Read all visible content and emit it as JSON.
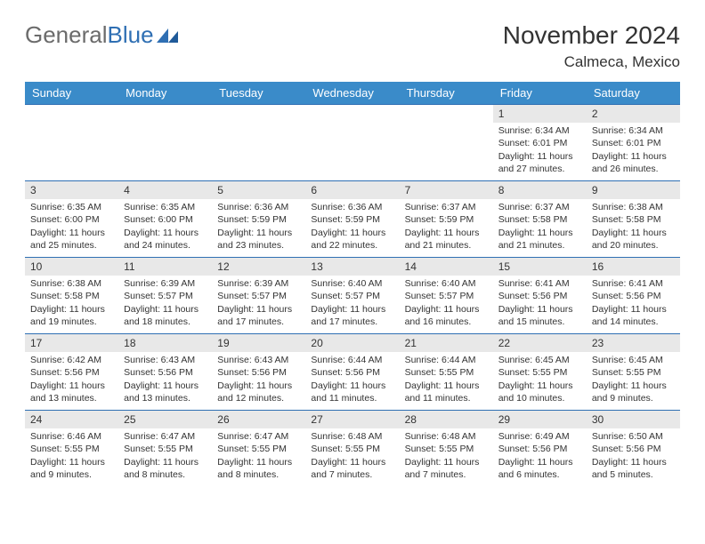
{
  "logo": {
    "text1": "General",
    "text2": "Blue"
  },
  "title": "November 2024",
  "location": "Calmeca, Mexico",
  "colors": {
    "header_bg": "#3a8bc9",
    "header_text": "#ffffff",
    "border": "#2f6fb3",
    "daynum_bg": "#e8e8e8",
    "text": "#333333",
    "logo_gray": "#6b6b6b",
    "logo_blue": "#2f6fb3"
  },
  "weekdays": [
    "Sunday",
    "Monday",
    "Tuesday",
    "Wednesday",
    "Thursday",
    "Friday",
    "Saturday"
  ],
  "weeks": [
    [
      null,
      null,
      null,
      null,
      null,
      {
        "d": "1",
        "sr": "Sunrise: 6:34 AM",
        "ss": "Sunset: 6:01 PM",
        "dl": "Daylight: 11 hours and 27 minutes."
      },
      {
        "d": "2",
        "sr": "Sunrise: 6:34 AM",
        "ss": "Sunset: 6:01 PM",
        "dl": "Daylight: 11 hours and 26 minutes."
      }
    ],
    [
      {
        "d": "3",
        "sr": "Sunrise: 6:35 AM",
        "ss": "Sunset: 6:00 PM",
        "dl": "Daylight: 11 hours and 25 minutes."
      },
      {
        "d": "4",
        "sr": "Sunrise: 6:35 AM",
        "ss": "Sunset: 6:00 PM",
        "dl": "Daylight: 11 hours and 24 minutes."
      },
      {
        "d": "5",
        "sr": "Sunrise: 6:36 AM",
        "ss": "Sunset: 5:59 PM",
        "dl": "Daylight: 11 hours and 23 minutes."
      },
      {
        "d": "6",
        "sr": "Sunrise: 6:36 AM",
        "ss": "Sunset: 5:59 PM",
        "dl": "Daylight: 11 hours and 22 minutes."
      },
      {
        "d": "7",
        "sr": "Sunrise: 6:37 AM",
        "ss": "Sunset: 5:59 PM",
        "dl": "Daylight: 11 hours and 21 minutes."
      },
      {
        "d": "8",
        "sr": "Sunrise: 6:37 AM",
        "ss": "Sunset: 5:58 PM",
        "dl": "Daylight: 11 hours and 21 minutes."
      },
      {
        "d": "9",
        "sr": "Sunrise: 6:38 AM",
        "ss": "Sunset: 5:58 PM",
        "dl": "Daylight: 11 hours and 20 minutes."
      }
    ],
    [
      {
        "d": "10",
        "sr": "Sunrise: 6:38 AM",
        "ss": "Sunset: 5:58 PM",
        "dl": "Daylight: 11 hours and 19 minutes."
      },
      {
        "d": "11",
        "sr": "Sunrise: 6:39 AM",
        "ss": "Sunset: 5:57 PM",
        "dl": "Daylight: 11 hours and 18 minutes."
      },
      {
        "d": "12",
        "sr": "Sunrise: 6:39 AM",
        "ss": "Sunset: 5:57 PM",
        "dl": "Daylight: 11 hours and 17 minutes."
      },
      {
        "d": "13",
        "sr": "Sunrise: 6:40 AM",
        "ss": "Sunset: 5:57 PM",
        "dl": "Daylight: 11 hours and 17 minutes."
      },
      {
        "d": "14",
        "sr": "Sunrise: 6:40 AM",
        "ss": "Sunset: 5:57 PM",
        "dl": "Daylight: 11 hours and 16 minutes."
      },
      {
        "d": "15",
        "sr": "Sunrise: 6:41 AM",
        "ss": "Sunset: 5:56 PM",
        "dl": "Daylight: 11 hours and 15 minutes."
      },
      {
        "d": "16",
        "sr": "Sunrise: 6:41 AM",
        "ss": "Sunset: 5:56 PM",
        "dl": "Daylight: 11 hours and 14 minutes."
      }
    ],
    [
      {
        "d": "17",
        "sr": "Sunrise: 6:42 AM",
        "ss": "Sunset: 5:56 PM",
        "dl": "Daylight: 11 hours and 13 minutes."
      },
      {
        "d": "18",
        "sr": "Sunrise: 6:43 AM",
        "ss": "Sunset: 5:56 PM",
        "dl": "Daylight: 11 hours and 13 minutes."
      },
      {
        "d": "19",
        "sr": "Sunrise: 6:43 AM",
        "ss": "Sunset: 5:56 PM",
        "dl": "Daylight: 11 hours and 12 minutes."
      },
      {
        "d": "20",
        "sr": "Sunrise: 6:44 AM",
        "ss": "Sunset: 5:56 PM",
        "dl": "Daylight: 11 hours and 11 minutes."
      },
      {
        "d": "21",
        "sr": "Sunrise: 6:44 AM",
        "ss": "Sunset: 5:55 PM",
        "dl": "Daylight: 11 hours and 11 minutes."
      },
      {
        "d": "22",
        "sr": "Sunrise: 6:45 AM",
        "ss": "Sunset: 5:55 PM",
        "dl": "Daylight: 11 hours and 10 minutes."
      },
      {
        "d": "23",
        "sr": "Sunrise: 6:45 AM",
        "ss": "Sunset: 5:55 PM",
        "dl": "Daylight: 11 hours and 9 minutes."
      }
    ],
    [
      {
        "d": "24",
        "sr": "Sunrise: 6:46 AM",
        "ss": "Sunset: 5:55 PM",
        "dl": "Daylight: 11 hours and 9 minutes."
      },
      {
        "d": "25",
        "sr": "Sunrise: 6:47 AM",
        "ss": "Sunset: 5:55 PM",
        "dl": "Daylight: 11 hours and 8 minutes."
      },
      {
        "d": "26",
        "sr": "Sunrise: 6:47 AM",
        "ss": "Sunset: 5:55 PM",
        "dl": "Daylight: 11 hours and 8 minutes."
      },
      {
        "d": "27",
        "sr": "Sunrise: 6:48 AM",
        "ss": "Sunset: 5:55 PM",
        "dl": "Daylight: 11 hours and 7 minutes."
      },
      {
        "d": "28",
        "sr": "Sunrise: 6:48 AM",
        "ss": "Sunset: 5:55 PM",
        "dl": "Daylight: 11 hours and 7 minutes."
      },
      {
        "d": "29",
        "sr": "Sunrise: 6:49 AM",
        "ss": "Sunset: 5:56 PM",
        "dl": "Daylight: 11 hours and 6 minutes."
      },
      {
        "d": "30",
        "sr": "Sunrise: 6:50 AM",
        "ss": "Sunset: 5:56 PM",
        "dl": "Daylight: 11 hours and 5 minutes."
      }
    ]
  ]
}
